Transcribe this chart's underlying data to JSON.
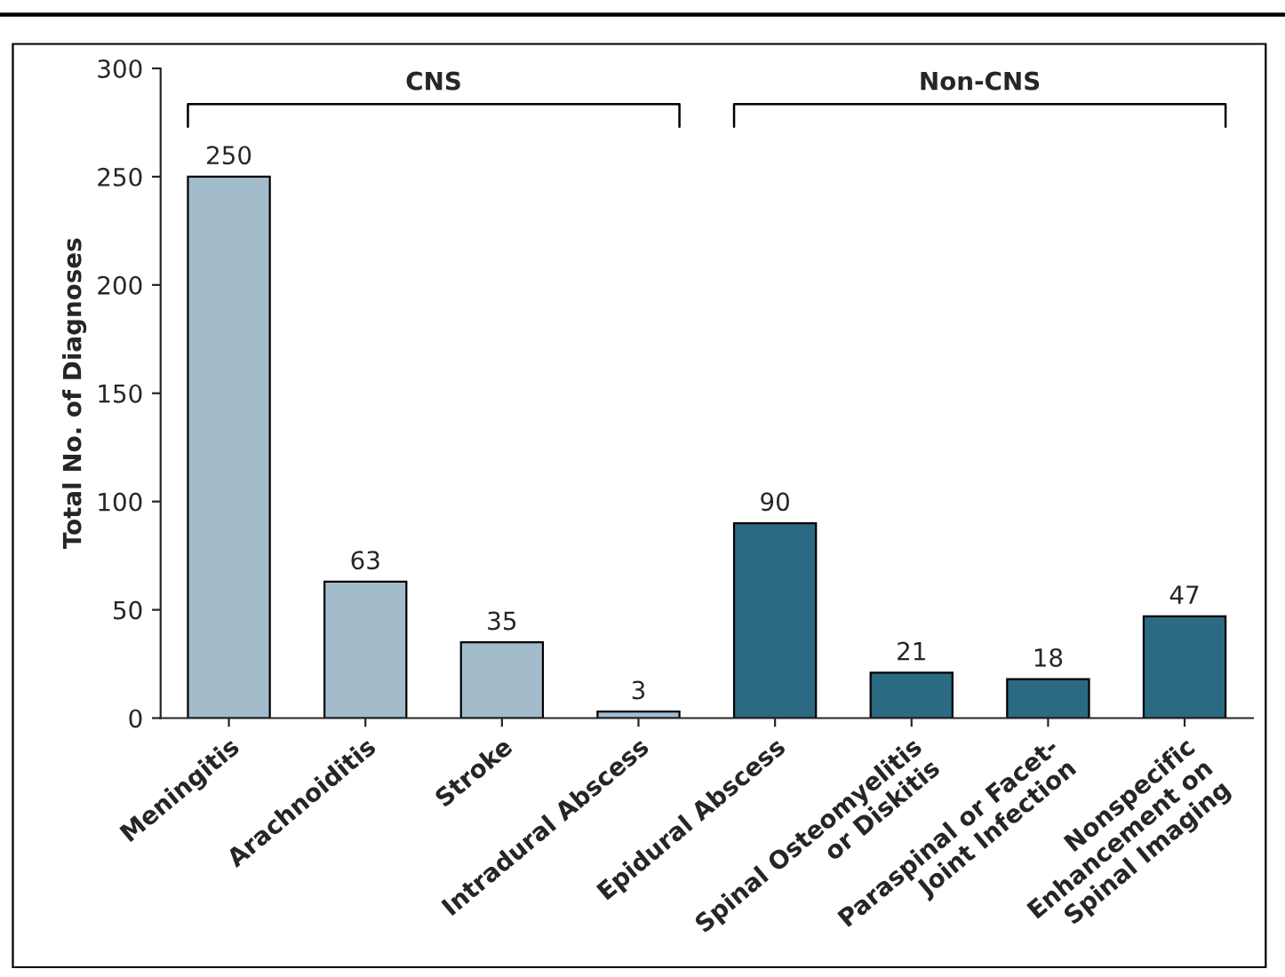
{
  "chart_data": {
    "type": "bar",
    "ylabel": "Total No. of Diagnoses",
    "categories": [
      "Meningitis",
      "Arachnoiditis",
      "Stroke",
      "Intradural Abscess",
      "Epidural Abscess",
      "Spinal Osteomyelitis\nor Diskitis",
      "Paraspinal or Facet-\nJoint Infection",
      "Nonspecific\nEnhancement on\nSpinal Imaging"
    ],
    "values": [
      250,
      63,
      35,
      3,
      90,
      21,
      18,
      47
    ],
    "colors": [
      "#a3bccc",
      "#a3bccc",
      "#a3bccc",
      "#a3bccc",
      "#2a6a82",
      "#2a6a82",
      "#2a6a82",
      "#2a6a82"
    ],
    "data_labels": true,
    "ylim": [
      0,
      300
    ],
    "yticks": [
      0,
      50,
      100,
      150,
      200,
      250,
      300
    ],
    "grid": false,
    "legend": false,
    "annotations": [
      "CNS",
      "Non-CNS"
    ]
  }
}
